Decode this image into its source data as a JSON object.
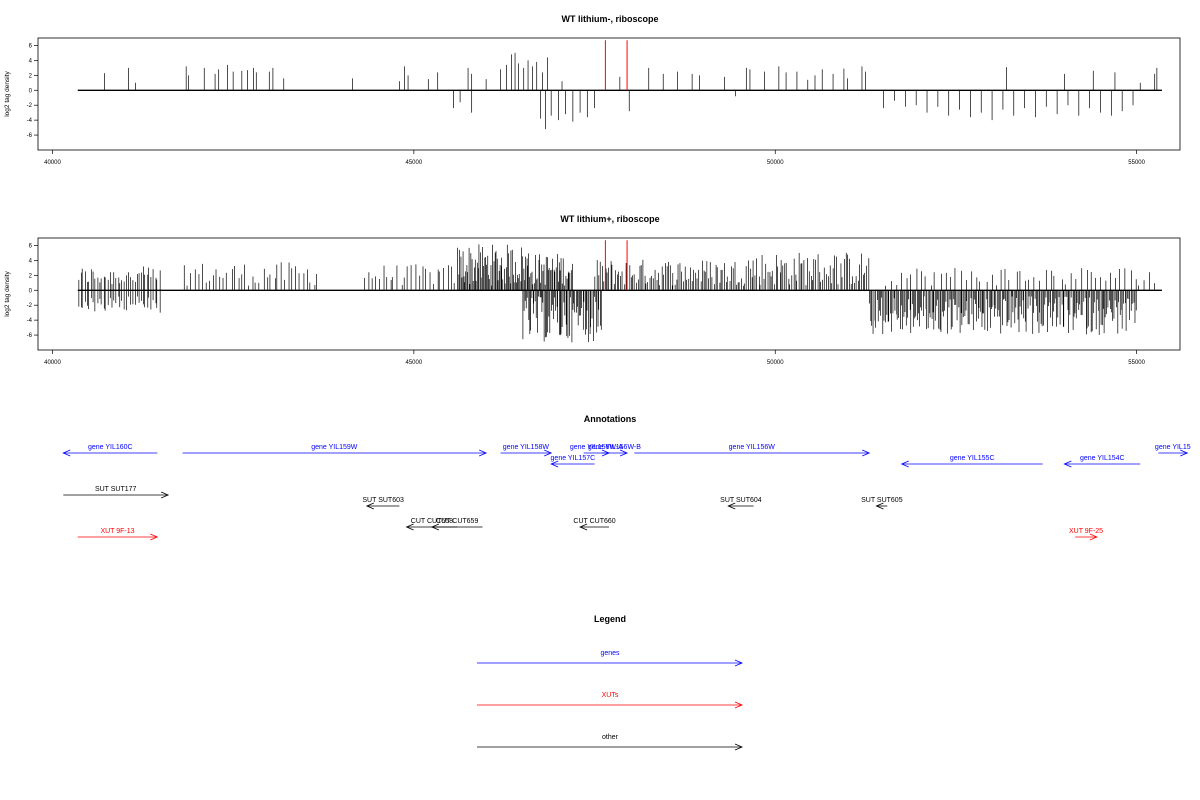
{
  "chart_data": [
    {
      "type": "bar",
      "title": "WT lithium-, riboscope",
      "ylabel": "log2 tag density",
      "xlim": [
        39800,
        55600
      ],
      "ylim": [
        -8,
        7
      ],
      "xticks": [
        40000,
        45000,
        50000,
        55000
      ],
      "yticks": [
        -6,
        -4,
        -2,
        0,
        2,
        4,
        6
      ],
      "grid": false,
      "baseline_x": [
        40350,
        55350
      ],
      "highlight_x": [
        47650,
        47950
      ],
      "highlight_color": "#ff0000",
      "plus_strand": [
        [
          40720,
          2.3
        ],
        [
          41050,
          3.0
        ],
        [
          41150,
          1.0
        ],
        [
          41850,
          3.2
        ],
        [
          41880,
          2.0
        ],
        [
          42100,
          3.0
        ],
        [
          42250,
          2.2
        ],
        [
          42300,
          2.8
        ],
        [
          42420,
          3.4
        ],
        [
          42500,
          2.5
        ],
        [
          42620,
          2.6
        ],
        [
          42700,
          2.7
        ],
        [
          42780,
          3.0
        ],
        [
          42820,
          2.4
        ],
        [
          43000,
          2.5
        ],
        [
          43050,
          3.0
        ],
        [
          43200,
          1.6
        ],
        [
          44150,
          1.6
        ],
        [
          44800,
          1.2
        ],
        [
          44870,
          3.2
        ],
        [
          44920,
          2.0
        ],
        [
          45200,
          1.5
        ],
        [
          45330,
          2.4
        ],
        [
          45750,
          3.0
        ],
        [
          45800,
          2.2
        ],
        [
          46000,
          1.5
        ],
        [
          46200,
          2.8
        ],
        [
          46280,
          3.4
        ],
        [
          46350,
          4.8
        ],
        [
          46400,
          5.0
        ],
        [
          46450,
          3.6
        ],
        [
          46520,
          3.0
        ],
        [
          46580,
          4.0
        ],
        [
          46640,
          3.2
        ],
        [
          46700,
          3.8
        ],
        [
          46780,
          2.4
        ],
        [
          46850,
          4.4
        ],
        [
          47050,
          1.2
        ],
        [
          47850,
          1.8
        ],
        [
          48250,
          3.0
        ],
        [
          48450,
          2.2
        ],
        [
          48650,
          2.5
        ],
        [
          48850,
          2.2
        ],
        [
          48950,
          2.0
        ],
        [
          49300,
          1.8
        ],
        [
          49600,
          3.0
        ],
        [
          49650,
          2.8
        ],
        [
          49850,
          2.5
        ],
        [
          50050,
          3.2
        ],
        [
          50150,
          2.4
        ],
        [
          50300,
          2.5
        ],
        [
          50450,
          1.4
        ],
        [
          50550,
          2.0
        ],
        [
          50650,
          2.8
        ],
        [
          50800,
          2.2
        ],
        [
          50950,
          2.9
        ],
        [
          51000,
          1.6
        ],
        [
          51200,
          3.2
        ],
        [
          51250,
          2.5
        ],
        [
          53200,
          3.1
        ],
        [
          54000,
          2.2
        ],
        [
          54400,
          2.6
        ],
        [
          54700,
          2.4
        ],
        [
          55050,
          1.0
        ],
        [
          55250,
          2.2
        ],
        [
          55280,
          3.0
        ]
      ],
      "minus_strand": [
        [
          45550,
          -2.4
        ],
        [
          45640,
          -1.6
        ],
        [
          45800,
          -3.0
        ],
        [
          46750,
          -3.8
        ],
        [
          46820,
          -5.2
        ],
        [
          46900,
          -3.4
        ],
        [
          47000,
          -4.0
        ],
        [
          47100,
          -3.2
        ],
        [
          47200,
          -4.2
        ],
        [
          47300,
          -3.0
        ],
        [
          47400,
          -3.6
        ],
        [
          47500,
          -2.4
        ],
        [
          47980,
          -2.8
        ],
        [
          49450,
          -0.8
        ],
        [
          51500,
          -2.4
        ],
        [
          51650,
          -1.4
        ],
        [
          51800,
          -2.2
        ],
        [
          51950,
          -2.0
        ],
        [
          52100,
          -3.0
        ],
        [
          52250,
          -2.2
        ],
        [
          52400,
          -3.4
        ],
        [
          52550,
          -2.6
        ],
        [
          52700,
          -3.6
        ],
        [
          52850,
          -3.0
        ],
        [
          53000,
          -4.0
        ],
        [
          53150,
          -2.6
        ],
        [
          53300,
          -3.4
        ],
        [
          53450,
          -2.4
        ],
        [
          53600,
          -3.6
        ],
        [
          53750,
          -2.2
        ],
        [
          53900,
          -3.2
        ],
        [
          54050,
          -2.0
        ],
        [
          54200,
          -3.4
        ],
        [
          54350,
          -2.4
        ],
        [
          54500,
          -3.0
        ],
        [
          54650,
          -3.4
        ],
        [
          54800,
          -2.8
        ],
        [
          54950,
          -2.0
        ]
      ]
    },
    {
      "type": "bar",
      "title": "WT lithium+, riboscope",
      "ylabel": "log2 tag density",
      "xlim": [
        39800,
        55600
      ],
      "ylim": [
        -8,
        7
      ],
      "xticks": [
        40000,
        45000,
        50000,
        55000
      ],
      "yticks": [
        -6,
        -4,
        -2,
        0,
        2,
        4,
        6
      ],
      "grid": false,
      "baseline_x": [
        40350,
        55350
      ],
      "highlight_x": [
        47650,
        47950
      ],
      "highlight_color": "#ff0000",
      "regions": [
        {
          "x0": 40350,
          "x1": 41500,
          "strand": "both",
          "count": 40,
          "plus_max": 3.2,
          "minus_max": 3.0
        },
        {
          "x0": 41800,
          "x1": 43700,
          "strand": "plus",
          "count": 38,
          "plus_max": 3.8
        },
        {
          "x0": 44300,
          "x1": 45600,
          "strand": "plus",
          "count": 26,
          "plus_max": 3.5
        },
        {
          "x0": 45600,
          "x1": 46600,
          "strand": "plus",
          "count": 70,
          "plus_max": 6.2
        },
        {
          "x0": 46600,
          "x1": 47200,
          "strand": "plus",
          "count": 40,
          "plus_max": 5.0
        },
        {
          "x0": 46500,
          "x1": 47600,
          "strand": "minus",
          "count": 70,
          "minus_max": 7.0
        },
        {
          "x0": 47500,
          "x1": 49500,
          "strand": "plus",
          "count": 85,
          "plus_max": 4.2
        },
        {
          "x0": 49500,
          "x1": 51300,
          "strand": "plus",
          "count": 75,
          "plus_max": 5.2
        },
        {
          "x0": 51300,
          "x1": 55000,
          "strand": "minus",
          "count": 220,
          "minus_max": 6.0
        },
        {
          "x0": 51500,
          "x1": 55300,
          "strand": "plus",
          "count": 55,
          "plus_max": 3.2
        }
      ]
    }
  ],
  "annotations": {
    "title": "Annotations",
    "features": [
      {
        "label": "gene YIL160C",
        "x0": 40150,
        "x1": 41450,
        "dir": "left",
        "row": 0,
        "type": "genes"
      },
      {
        "label": "gene YIL159W",
        "x0": 41800,
        "x1": 46000,
        "dir": "right",
        "row": 0,
        "type": "genes"
      },
      {
        "label": "gene YIL158W",
        "x0": 46200,
        "x1": 46900,
        "dir": "right",
        "row": 0,
        "type": "genes"
      },
      {
        "label": "gene YIL157C",
        "x0": 46900,
        "x1": 47500,
        "dir": "left",
        "row": 1,
        "type": "genes"
      },
      {
        "label": "gene YIL156W-A",
        "x0": 47350,
        "x1": 47700,
        "dir": "right",
        "row": 0,
        "type": "genes"
      },
      {
        "label": "gene YIL156W-B",
        "x0": 47600,
        "x1": 47950,
        "dir": "right",
        "row": 0,
        "type": "genes"
      },
      {
        "label": "gene YIL156W",
        "x0": 48050,
        "x1": 51300,
        "dir": "right",
        "row": 0,
        "type": "genes"
      },
      {
        "label": "gene YIL155C",
        "x0": 51750,
        "x1": 53700,
        "dir": "left",
        "row": 1,
        "type": "genes"
      },
      {
        "label": "gene YIL154C",
        "x0": 54000,
        "x1": 55050,
        "dir": "left",
        "row": 1,
        "type": "genes"
      },
      {
        "label": "gene YIL15",
        "x0": 55300,
        "x1": 55700,
        "dir": "right",
        "row": 0,
        "type": "genes"
      },
      {
        "label": "SUT SUT177",
        "x0": 40150,
        "x1": 41600,
        "dir": "right",
        "row": 2,
        "type": "other"
      },
      {
        "label": "SUT SUT603",
        "x0": 44350,
        "x1": 44800,
        "dir": "left",
        "row": 3,
        "type": "other"
      },
      {
        "label": "SUT SUT604",
        "x0": 49350,
        "x1": 49700,
        "dir": "left",
        "row": 3,
        "type": "other"
      },
      {
        "label": "SUT SUT605",
        "x0": 51400,
        "x1": 51550,
        "dir": "left",
        "row": 3,
        "type": "other"
      },
      {
        "label": "CUT CUT658",
        "x0": 44900,
        "x1": 45600,
        "dir": "left",
        "row": 4,
        "type": "other"
      },
      {
        "label": "CUT CUT659",
        "x0": 45250,
        "x1": 45950,
        "dir": "left",
        "row": 4,
        "type": "other"
      },
      {
        "label": "CUT CUT660",
        "x0": 47300,
        "x1": 47700,
        "dir": "left",
        "row": 4,
        "type": "other"
      },
      {
        "label": "XUT 9F-13",
        "x0": 40350,
        "x1": 41450,
        "dir": "right",
        "row": 5,
        "type": "xuts"
      },
      {
        "label": "XUT 9F-25",
        "x0": 54150,
        "x1": 54450,
        "dir": "right",
        "row": 5,
        "type": "xuts"
      }
    ]
  },
  "legend": {
    "title": "Legend",
    "items": [
      {
        "label": "genes",
        "color": "#0000ff"
      },
      {
        "label": "XUTs",
        "color": "#ff0000"
      },
      {
        "label": "other",
        "color": "#000000"
      }
    ]
  },
  "colors": {
    "genes": "#0000ff",
    "xuts": "#ff0000",
    "other": "#000000"
  }
}
